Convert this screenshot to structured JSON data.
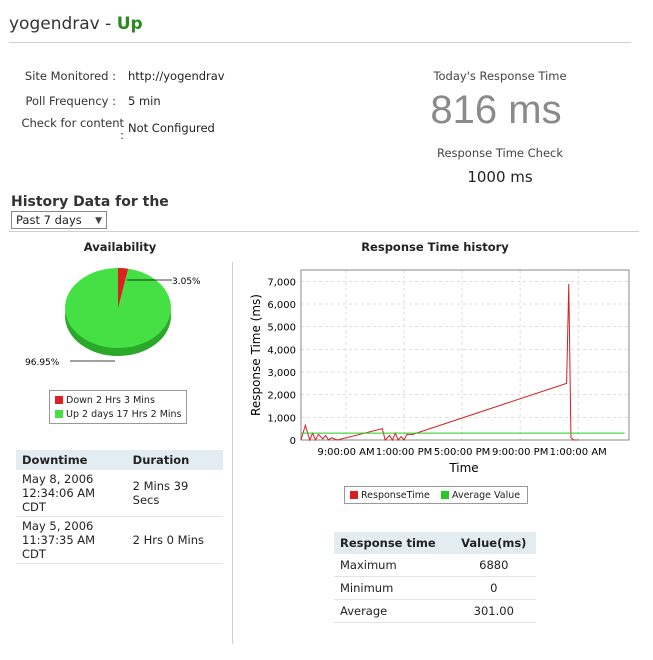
{
  "header": {
    "name": "yogendrav",
    "separator": "-",
    "status": "Up"
  },
  "info": {
    "site_label": "Site Monitored :",
    "site_value": "http://yogendrav",
    "poll_label": "Poll Frequency :",
    "poll_value": "5 min",
    "content_label": "Check for content",
    "content_colon": ":",
    "content_value": "Not Configured"
  },
  "response": {
    "today_label": "Today's Response Time",
    "today_value": "816 ms",
    "check_label": "Response Time Check",
    "check_value": "1000 ms"
  },
  "history": {
    "title": "History Data for the",
    "period": "Past 7 days"
  },
  "availability": {
    "title": "Availability",
    "down_pct": "3.05%",
    "up_pct": "96.95%",
    "down_fraction": 0.0305,
    "legend_down": "Down 2 Hrs 3 Mins",
    "legend_up": "Up 2 days 17 Hrs 2 Mins",
    "down_color": "#e02020",
    "up_color": "#44e044"
  },
  "downtime_table": {
    "headers": [
      "Downtime",
      "Duration"
    ],
    "rows": [
      {
        "date": "May 8, 2006",
        "time": "12:34:06 AM CDT",
        "duration": "2 Mins 39 Secs"
      },
      {
        "date": "May 5, 2006",
        "time": "11:37:35 AM CDT",
        "duration": "2 Hrs 0 Mins"
      }
    ]
  },
  "chart_data": {
    "type": "line",
    "title": "Response Time history",
    "xlabel": "Time",
    "ylabel": "Response Time (ms)",
    "ylim": [
      0,
      7500
    ],
    "yticks": [
      0,
      1000,
      2000,
      3000,
      4000,
      5000,
      6000,
      7000
    ],
    "ytick_labels": [
      "0",
      "1,000",
      "2,000",
      "3,000",
      "4,000",
      "5,000",
      "6,000",
      "7,000"
    ],
    "xticks": [
      9,
      13,
      17,
      21,
      25
    ],
    "xtick_labels": [
      "9:00:00 AM",
      "1:00:00 PM",
      "5:00:00 PM",
      "9:00:00 PM",
      "1:00:00 AM"
    ],
    "xlim": [
      5.9,
      28.5
    ],
    "grid": true,
    "series": [
      {
        "name": "ResponseTime",
        "color": "#d42020",
        "x": [
          5.9,
          6.2,
          6.5,
          6.7,
          6.9,
          7.1,
          7.4,
          7.6,
          7.8,
          8.0,
          8.4,
          11.5,
          11.7,
          12.0,
          12.2,
          12.4,
          12.6,
          12.8,
          13.0,
          13.2,
          13.6,
          24.2,
          24.35,
          24.5,
          24.7,
          25.0
        ],
        "y": [
          0,
          650,
          0,
          300,
          0,
          250,
          50,
          200,
          0,
          100,
          0,
          500,
          0,
          200,
          0,
          300,
          0,
          150,
          0,
          250,
          250,
          2500,
          6880,
          100,
          0,
          0
        ]
      },
      {
        "name": "Average Value",
        "color": "#22cc22",
        "x": [
          5.9,
          28.2
        ],
        "y": [
          301,
          301
        ]
      }
    ]
  },
  "stats_table": {
    "headers": [
      "Response time",
      "Value(ms)"
    ],
    "rows": [
      {
        "label": "Maximum",
        "value": "6880"
      },
      {
        "label": "Minimum",
        "value": "0"
      },
      {
        "label": "Average",
        "value": "301.00"
      }
    ]
  }
}
